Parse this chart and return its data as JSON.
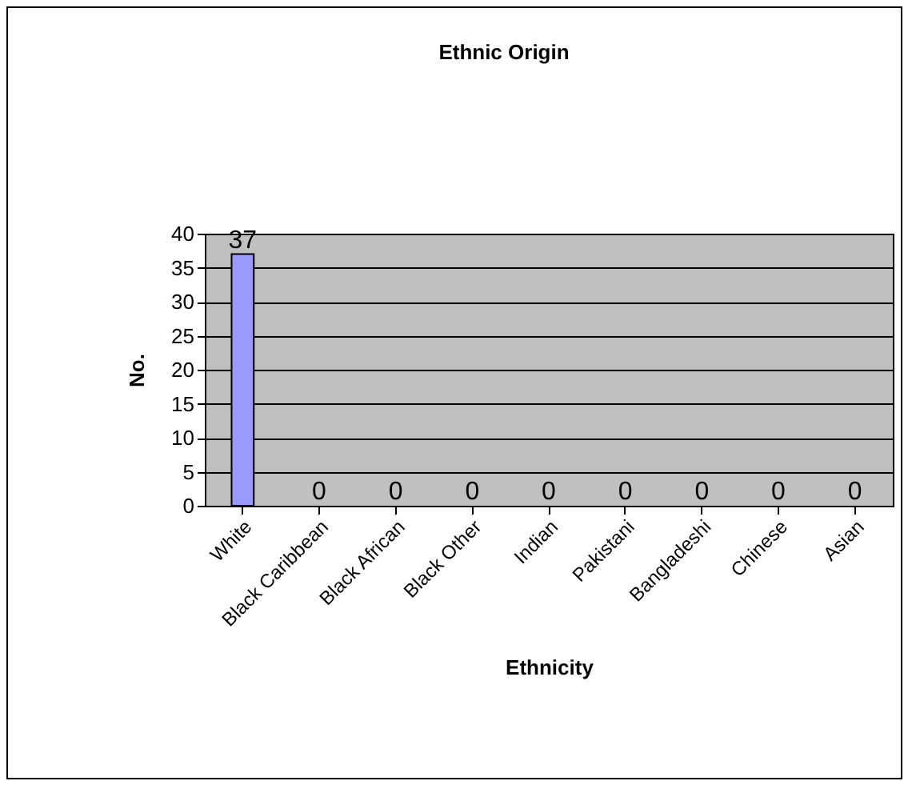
{
  "chart_data": {
    "type": "bar",
    "title": "Ethnic Origin",
    "xlabel": "Ethnicity",
    "ylabel": "No.",
    "categories": [
      "White",
      "Black Caribbean",
      "Black African",
      "Black Other",
      "Indian",
      "Pakistani",
      "Bangladeshi",
      "Chinese",
      "Asian"
    ],
    "values": [
      37,
      0,
      0,
      0,
      0,
      0,
      0,
      0,
      0
    ],
    "color": "#9999ff",
    "ylim": [
      0,
      40
    ],
    "yticks": [
      0,
      5,
      10,
      15,
      20,
      25,
      30,
      35,
      40
    ],
    "grid": "y",
    "data_labels": true
  }
}
